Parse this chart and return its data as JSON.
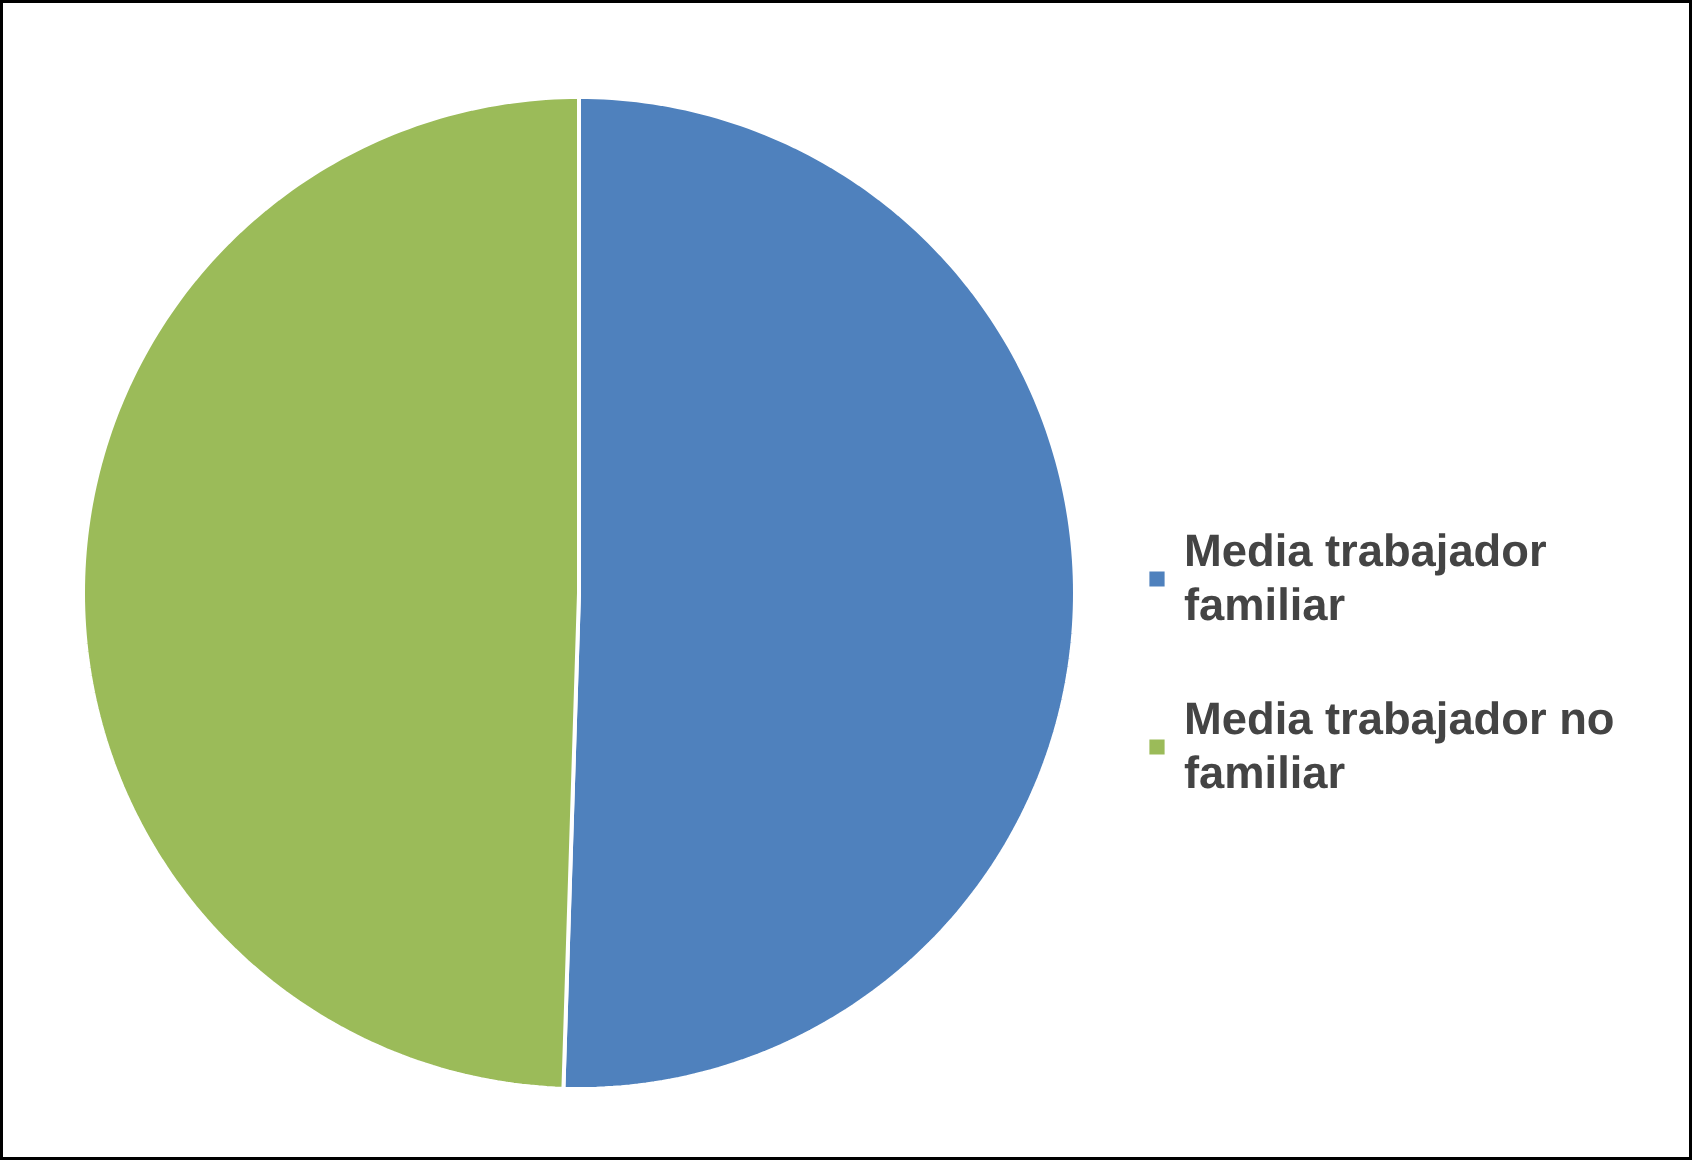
{
  "chart_data": {
    "type": "pie",
    "categories": [
      "Media trabajador familiar",
      "Media trabajador no familiar"
    ],
    "values": [
      50.5,
      49.5
    ],
    "colors": [
      "#4f81bd",
      "#9bbb59"
    ],
    "legend": "right"
  }
}
